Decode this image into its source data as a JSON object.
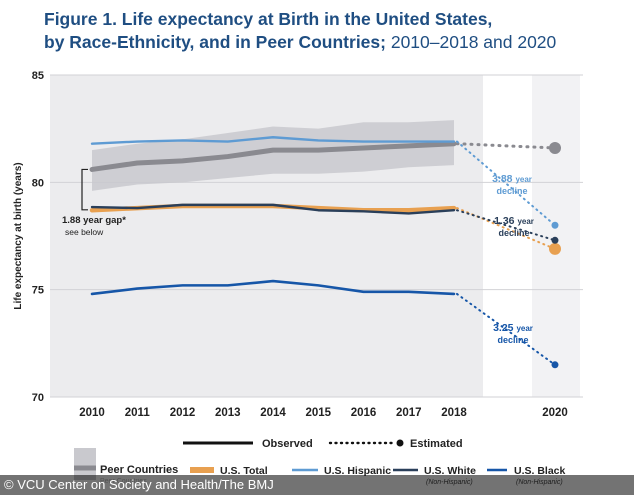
{
  "figure": {
    "title_bold_1": "Figure 1. Life expectancy at Birth in the United States,",
    "title_bold_2": "by Race-Ethnicity, and in Peer Countries;",
    "title_rest": " 2010–2018 and 2020"
  },
  "credit": "© VCU Center on Society and Health/The BMJ",
  "chart_data": {
    "type": "line",
    "ylabel": "Life expectancy at birth (years)",
    "ylim": [
      70,
      85
    ],
    "yticks": [
      70,
      75,
      80,
      85
    ],
    "x": [
      2010,
      2011,
      2012,
      2013,
      2014,
      2015,
      2016,
      2017,
      2018
    ],
    "x_estimated": [
      2020
    ],
    "x_tick_labels": [
      "2010",
      "2011",
      "2012",
      "2013",
      "2014",
      "2015",
      "2016",
      "2017",
      "2018",
      "2020"
    ],
    "grid": true,
    "colors": {
      "peer": "#8a8a90",
      "peer_band": "#c9c9ce",
      "us_total": "#e8a050",
      "hispanic": "#5e9bd3",
      "white": "#2a3f5a",
      "black": "#1656a8",
      "panel": "#ececee",
      "estimate_panel": "#f2f2f4"
    },
    "peer_range": {
      "low": [
        79.6,
        79.9,
        80.0,
        80.2,
        80.4,
        80.4,
        80.5,
        80.7,
        80.8
      ],
      "high": [
        81.5,
        81.8,
        82.0,
        82.3,
        82.6,
        82.5,
        82.8,
        82.8,
        82.9
      ]
    },
    "series": [
      {
        "name": "Peer Countries",
        "key": "peer",
        "values": [
          80.6,
          80.9,
          81.0,
          81.2,
          81.5,
          81.5,
          81.6,
          81.7,
          81.8
        ],
        "estimate_2020": 81.6
      },
      {
        "name": "U.S. Total",
        "key": "us_total",
        "values": [
          78.7,
          78.8,
          78.9,
          78.9,
          78.9,
          78.8,
          78.7,
          78.7,
          78.8
        ],
        "estimate_2020": 76.9
      },
      {
        "name": "U.S. Hispanic",
        "key": "hispanic",
        "values": [
          81.8,
          81.9,
          81.95,
          81.9,
          82.1,
          81.95,
          81.9,
          81.9,
          81.9
        ],
        "estimate_2020": 78.0
      },
      {
        "name": "U.S. White",
        "sub": "(Non-Hispanic)",
        "key": "white",
        "values": [
          78.85,
          78.8,
          78.95,
          78.95,
          78.95,
          78.7,
          78.65,
          78.55,
          78.7
        ],
        "estimate_2020": 77.3
      },
      {
        "name": "U.S. Black",
        "sub": "(Non-Hispanic)",
        "key": "black",
        "values": [
          74.8,
          75.05,
          75.2,
          75.2,
          75.4,
          75.2,
          74.9,
          74.9,
          74.8
        ],
        "estimate_2020": 71.5
      }
    ],
    "annotations": {
      "gap_value": "1.88 year gap*",
      "gap_note": "see below",
      "hispanic_decline": "3.88",
      "white_decline": "1.36",
      "black_decline": "3.25",
      "year_word": "year",
      "decline_word": "decline"
    },
    "legend": {
      "observed": "Observed",
      "estimated": "Estimated",
      "peer_ghost": "Peer Countries"
    }
  }
}
